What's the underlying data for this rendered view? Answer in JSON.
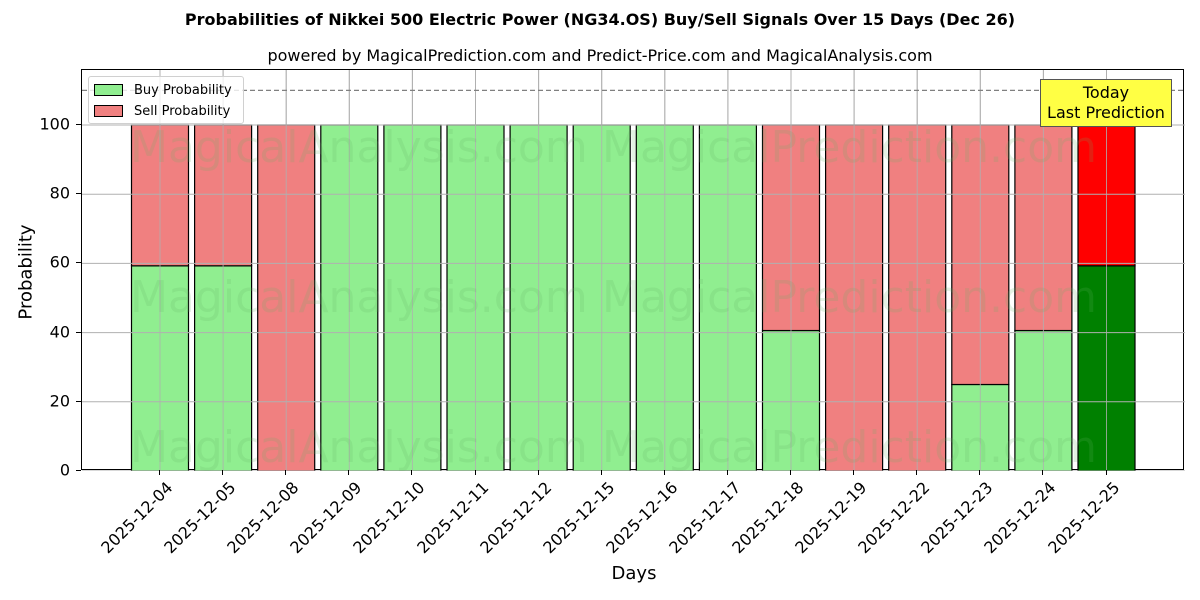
{
  "header": {
    "title": "Probabilities of Nikkei 500 Electric Power (NG34.OS) Buy/Sell Signals Over 15 Days (Dec 26)",
    "subtitle": "powered by MagicalPrediction.com and Predict-Price.com and MagicalAnalysis.com"
  },
  "axes": {
    "xlabel": "Days",
    "ylabel": "Probability",
    "yticks": [
      "0",
      "20",
      "40",
      "60",
      "80",
      "100"
    ]
  },
  "legend": {
    "buy_label": "Buy Probability",
    "sell_label": "Sell Probability"
  },
  "annotation": {
    "line1": "Today",
    "line2": "Last Prediction"
  },
  "watermarks": [
    "MagicalAnalysis.com",
    "MagicalPrediction.com"
  ],
  "colors": {
    "buy": "#90ee90",
    "sell": "#f08080",
    "today_buy": "#008000",
    "today_sell": "#ff0000",
    "annotation_bg": "#ffff44"
  },
  "chart_data": {
    "type": "bar",
    "stacked": true,
    "title": "Probabilities of Nikkei 500 Electric Power (NG34.OS) Buy/Sell Signals Over 15 Days (Dec 26)",
    "subtitle": "powered by MagicalPrediction.com and Predict-Price.com and MagicalAnalysis.com",
    "xlabel": "Days",
    "ylabel": "Probability",
    "ylim": [
      0,
      115
    ],
    "yticks": [
      0,
      20,
      40,
      60,
      80,
      100
    ],
    "grid": true,
    "legend_position": "upper left",
    "reference_line": {
      "y": 110,
      "style": "dashed",
      "color": "#808080"
    },
    "categories": [
      "2025-12-04",
      "2025-12-05",
      "2025-12-08",
      "2025-12-09",
      "2025-12-10",
      "2025-12-11",
      "2025-12-12",
      "2025-12-15",
      "2025-12-16",
      "2025-12-17",
      "2025-12-18",
      "2025-12-19",
      "2025-12-22",
      "2025-12-23",
      "2025-12-24",
      "2025-12-25"
    ],
    "series": [
      {
        "name": "Buy Probability",
        "values": [
          59.3,
          59.3,
          0,
          100,
          100,
          100,
          100,
          100,
          100,
          100,
          40.6,
          0,
          0,
          25,
          40.6,
          59.3
        ]
      },
      {
        "name": "Sell Probability",
        "values": [
          40.7,
          40.7,
          100,
          0,
          0,
          0,
          0,
          0,
          0,
          0,
          59.4,
          100,
          100,
          75,
          59.4,
          40.7
        ]
      }
    ],
    "highlight": {
      "index": 15,
      "label": "Today\nLast Prediction"
    }
  }
}
